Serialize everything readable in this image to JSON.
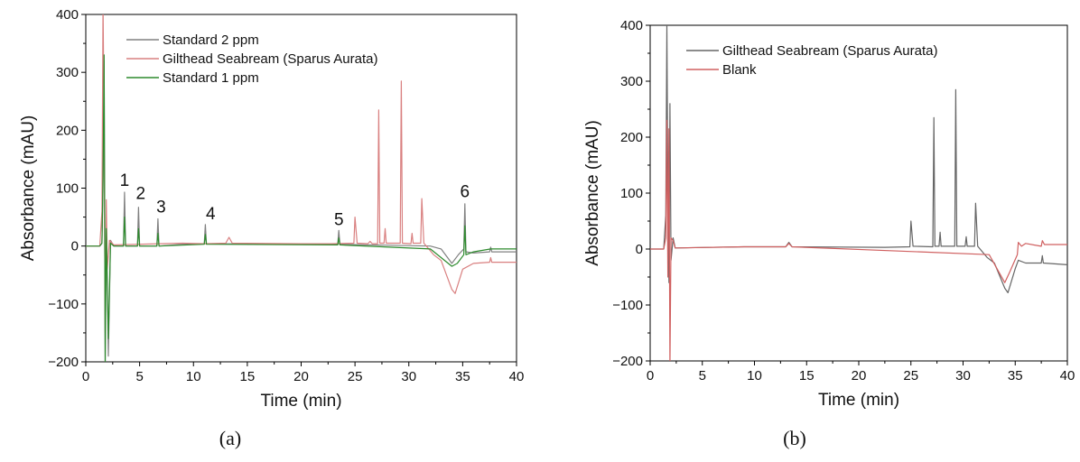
{
  "chart_data": [
    {
      "panel": "a",
      "panel_label": "(a)",
      "type": "line",
      "xlabel": "Time (min)",
      "ylabel": "Absorbance (mAU)",
      "xlim": [
        0,
        40
      ],
      "ylim": [
        -200,
        400
      ],
      "xticks": [
        0,
        5,
        10,
        15,
        20,
        25,
        30,
        35,
        40
      ],
      "yticks": [
        -200,
        -100,
        0,
        100,
        200,
        300,
        400
      ],
      "legend_position": "top-center",
      "series": [
        {
          "name": "Standard 2 ppm",
          "color": "#808080",
          "points": [
            [
              0,
              0
            ],
            [
              1.3,
              0
            ],
            [
              1.5,
              5
            ],
            [
              1.6,
              100
            ],
            [
              1.7,
              320
            ],
            [
              1.8,
              -200
            ],
            [
              1.9,
              50
            ],
            [
              2.1,
              -190
            ],
            [
              2.3,
              10
            ],
            [
              2.6,
              0
            ],
            [
              3.5,
              0
            ],
            [
              3.6,
              93
            ],
            [
              3.7,
              0
            ],
            [
              4.8,
              0
            ],
            [
              4.9,
              67
            ],
            [
              5.0,
              0
            ],
            [
              6.6,
              0
            ],
            [
              6.7,
              47
            ],
            [
              6.8,
              0
            ],
            [
              9.0,
              3
            ],
            [
              11.0,
              4
            ],
            [
              11.1,
              37
            ],
            [
              11.2,
              4
            ],
            [
              20.0,
              3
            ],
            [
              23.4,
              3
            ],
            [
              23.5,
              27
            ],
            [
              23.6,
              3
            ],
            [
              32.0,
              0
            ],
            [
              33.0,
              -5
            ],
            [
              34.0,
              -30
            ],
            [
              34.6,
              -15
            ],
            [
              35.1,
              -5
            ],
            [
              35.2,
              73
            ],
            [
              35.3,
              -10
            ],
            [
              36.0,
              -12
            ],
            [
              37.5,
              -10
            ],
            [
              37.6,
              -2
            ],
            [
              37.7,
              -10
            ],
            [
              40,
              -10
            ]
          ]
        },
        {
          "name": "Gilthead Seabream (Sparus Aurata)",
          "color": "#d98080",
          "points": [
            [
              0,
              0
            ],
            [
              1.3,
              0
            ],
            [
              1.5,
              60
            ],
            [
              1.6,
              420
            ],
            [
              1.7,
              200
            ],
            [
              1.8,
              -150
            ],
            [
              1.9,
              80
            ],
            [
              2.0,
              -40
            ],
            [
              2.2,
              10
            ],
            [
              2.6,
              2
            ],
            [
              9.0,
              5
            ],
            [
              11.0,
              4
            ],
            [
              13.0,
              5
            ],
            [
              13.3,
              15
            ],
            [
              13.6,
              5
            ],
            [
              20.0,
              4
            ],
            [
              22.8,
              4
            ],
            [
              24.9,
              5
            ],
            [
              25.0,
              50
            ],
            [
              25.2,
              5
            ],
            [
              26.2,
              4
            ],
            [
              26.4,
              8
            ],
            [
              26.6,
              4
            ],
            [
              27.1,
              4
            ],
            [
              27.2,
              235
            ],
            [
              27.3,
              5
            ],
            [
              27.7,
              5
            ],
            [
              27.8,
              30
            ],
            [
              27.9,
              5
            ],
            [
              29.2,
              5
            ],
            [
              29.3,
              285
            ],
            [
              29.4,
              5
            ],
            [
              30.2,
              4
            ],
            [
              30.3,
              22
            ],
            [
              30.4,
              5
            ],
            [
              31.1,
              5
            ],
            [
              31.2,
              82
            ],
            [
              31.4,
              5
            ],
            [
              32.3,
              -15
            ],
            [
              33.0,
              -25
            ],
            [
              34.0,
              -75
            ],
            [
              34.3,
              -82
            ],
            [
              35.0,
              -40
            ],
            [
              36.0,
              -30
            ],
            [
              37.5,
              -28
            ],
            [
              37.6,
              -20
            ],
            [
              37.7,
              -28
            ],
            [
              40,
              -28
            ]
          ]
        },
        {
          "name": "Standard 1 ppm",
          "color": "#2d8a2d",
          "points": [
            [
              0,
              0
            ],
            [
              1.3,
              0
            ],
            [
              1.5,
              5
            ],
            [
              1.6,
              120
            ],
            [
              1.7,
              330
            ],
            [
              1.8,
              -200
            ],
            [
              1.9,
              30
            ],
            [
              2.1,
              -160
            ],
            [
              2.3,
              5
            ],
            [
              2.6,
              0
            ],
            [
              3.5,
              0
            ],
            [
              3.6,
              50
            ],
            [
              3.7,
              0
            ],
            [
              4.8,
              0
            ],
            [
              4.9,
              30
            ],
            [
              5.0,
              0
            ],
            [
              6.6,
              0
            ],
            [
              6.7,
              22
            ],
            [
              6.8,
              0
            ],
            [
              11.0,
              3
            ],
            [
              11.1,
              20
            ],
            [
              11.2,
              3
            ],
            [
              23.4,
              2
            ],
            [
              23.5,
              14
            ],
            [
              23.6,
              2
            ],
            [
              32.0,
              -5
            ],
            [
              34.0,
              -35
            ],
            [
              34.5,
              -30
            ],
            [
              35.1,
              -15
            ],
            [
              35.2,
              35
            ],
            [
              35.3,
              -15
            ],
            [
              36.0,
              -10
            ],
            [
              37.6,
              -5
            ],
            [
              40,
              -5
            ]
          ]
        }
      ],
      "peak_labels": [
        {
          "text": "1",
          "x": 3.6,
          "y": 98
        },
        {
          "text": "2",
          "x": 5.1,
          "y": 75
        },
        {
          "text": "3",
          "x": 7.0,
          "y": 52
        },
        {
          "text": "4",
          "x": 11.6,
          "y": 40
        },
        {
          "text": "5",
          "x": 23.5,
          "y": 30
        },
        {
          "text": "6",
          "x": 35.2,
          "y": 78
        }
      ]
    },
    {
      "panel": "b",
      "panel_label": "(b)",
      "type": "line",
      "xlabel": "Time (min)",
      "ylabel": "Absorbance (mAU)",
      "xlim": [
        0,
        40
      ],
      "ylim": [
        -200,
        400
      ],
      "xticks": [
        0,
        5,
        10,
        15,
        20,
        25,
        30,
        35,
        40
      ],
      "yticks": [
        -200,
        -100,
        0,
        100,
        200,
        300,
        400
      ],
      "legend_position": "top-center",
      "series": [
        {
          "name": "Gilthead Seabream (Sparus Aurata)",
          "color": "#666666",
          "points": [
            [
              0,
              0
            ],
            [
              1.3,
              0
            ],
            [
              1.5,
              60
            ],
            [
              1.6,
              400
            ],
            [
              1.7,
              100
            ],
            [
              1.8,
              -60
            ],
            [
              1.9,
              260
            ],
            [
              2.0,
              -20
            ],
            [
              2.2,
              20
            ],
            [
              2.4,
              2
            ],
            [
              9.0,
              4
            ],
            [
              13.0,
              4
            ],
            [
              13.3,
              12
            ],
            [
              13.6,
              4
            ],
            [
              22.5,
              3
            ],
            [
              24.9,
              4
            ],
            [
              25.0,
              50
            ],
            [
              25.2,
              5
            ],
            [
              27.1,
              4
            ],
            [
              27.2,
              235
            ],
            [
              27.3,
              5
            ],
            [
              27.7,
              5
            ],
            [
              27.8,
              30
            ],
            [
              27.9,
              5
            ],
            [
              29.2,
              5
            ],
            [
              29.3,
              285
            ],
            [
              29.4,
              5
            ],
            [
              30.2,
              5
            ],
            [
              30.3,
              22
            ],
            [
              30.4,
              5
            ],
            [
              31.1,
              5
            ],
            [
              31.2,
              82
            ],
            [
              31.4,
              5
            ],
            [
              32.3,
              -15
            ],
            [
              33.0,
              -25
            ],
            [
              34.0,
              -70
            ],
            [
              34.3,
              -78
            ],
            [
              35.0,
              -35
            ],
            [
              35.3,
              -20
            ],
            [
              36.0,
              -25
            ],
            [
              37.5,
              -25
            ],
            [
              37.6,
              -12
            ],
            [
              37.7,
              -25
            ],
            [
              40,
              -28
            ]
          ]
        },
        {
          "name": "Blank",
          "color": "#d06060",
          "points": [
            [
              0,
              0
            ],
            [
              1.3,
              0
            ],
            [
              1.5,
              20
            ],
            [
              1.6,
              230
            ],
            [
              1.7,
              -50
            ],
            [
              1.8,
              215
            ],
            [
              1.9,
              -210
            ],
            [
              2.0,
              20
            ],
            [
              2.2,
              15
            ],
            [
              2.4,
              2
            ],
            [
              9.0,
              4
            ],
            [
              13.0,
              4
            ],
            [
              13.3,
              10
            ],
            [
              13.6,
              4
            ],
            [
              32.5,
              -10
            ],
            [
              34.0,
              -60
            ],
            [
              34.5,
              -40
            ],
            [
              35.2,
              -10
            ],
            [
              35.3,
              12
            ],
            [
              35.6,
              5
            ],
            [
              36.0,
              10
            ],
            [
              37.5,
              5
            ],
            [
              37.6,
              15
            ],
            [
              37.8,
              8
            ],
            [
              40,
              8
            ]
          ]
        }
      ],
      "peak_labels": []
    }
  ]
}
